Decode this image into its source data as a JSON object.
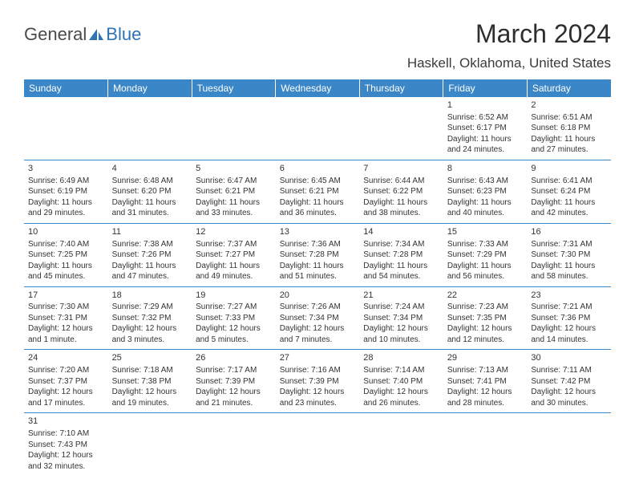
{
  "logo": {
    "text1": "General",
    "text2": "Blue"
  },
  "title": "March 2024",
  "location": "Haskell, Oklahoma, United States",
  "colors": {
    "header_bg": "#3b86c6",
    "header_fg": "#ffffff",
    "text": "#333333",
    "accent": "#2e74b5"
  },
  "weekdays": [
    "Sunday",
    "Monday",
    "Tuesday",
    "Wednesday",
    "Thursday",
    "Friday",
    "Saturday"
  ],
  "weeks": [
    [
      null,
      null,
      null,
      null,
      null,
      {
        "d": "1",
        "sr": "Sunrise: 6:52 AM",
        "ss": "Sunset: 6:17 PM",
        "dl1": "Daylight: 11 hours",
        "dl2": "and 24 minutes."
      },
      {
        "d": "2",
        "sr": "Sunrise: 6:51 AM",
        "ss": "Sunset: 6:18 PM",
        "dl1": "Daylight: 11 hours",
        "dl2": "and 27 minutes."
      }
    ],
    [
      {
        "d": "3",
        "sr": "Sunrise: 6:49 AM",
        "ss": "Sunset: 6:19 PM",
        "dl1": "Daylight: 11 hours",
        "dl2": "and 29 minutes."
      },
      {
        "d": "4",
        "sr": "Sunrise: 6:48 AM",
        "ss": "Sunset: 6:20 PM",
        "dl1": "Daylight: 11 hours",
        "dl2": "and 31 minutes."
      },
      {
        "d": "5",
        "sr": "Sunrise: 6:47 AM",
        "ss": "Sunset: 6:21 PM",
        "dl1": "Daylight: 11 hours",
        "dl2": "and 33 minutes."
      },
      {
        "d": "6",
        "sr": "Sunrise: 6:45 AM",
        "ss": "Sunset: 6:21 PM",
        "dl1": "Daylight: 11 hours",
        "dl2": "and 36 minutes."
      },
      {
        "d": "7",
        "sr": "Sunrise: 6:44 AM",
        "ss": "Sunset: 6:22 PM",
        "dl1": "Daylight: 11 hours",
        "dl2": "and 38 minutes."
      },
      {
        "d": "8",
        "sr": "Sunrise: 6:43 AM",
        "ss": "Sunset: 6:23 PM",
        "dl1": "Daylight: 11 hours",
        "dl2": "and 40 minutes."
      },
      {
        "d": "9",
        "sr": "Sunrise: 6:41 AM",
        "ss": "Sunset: 6:24 PM",
        "dl1": "Daylight: 11 hours",
        "dl2": "and 42 minutes."
      }
    ],
    [
      {
        "d": "10",
        "sr": "Sunrise: 7:40 AM",
        "ss": "Sunset: 7:25 PM",
        "dl1": "Daylight: 11 hours",
        "dl2": "and 45 minutes."
      },
      {
        "d": "11",
        "sr": "Sunrise: 7:38 AM",
        "ss": "Sunset: 7:26 PM",
        "dl1": "Daylight: 11 hours",
        "dl2": "and 47 minutes."
      },
      {
        "d": "12",
        "sr": "Sunrise: 7:37 AM",
        "ss": "Sunset: 7:27 PM",
        "dl1": "Daylight: 11 hours",
        "dl2": "and 49 minutes."
      },
      {
        "d": "13",
        "sr": "Sunrise: 7:36 AM",
        "ss": "Sunset: 7:28 PM",
        "dl1": "Daylight: 11 hours",
        "dl2": "and 51 minutes."
      },
      {
        "d": "14",
        "sr": "Sunrise: 7:34 AM",
        "ss": "Sunset: 7:28 PM",
        "dl1": "Daylight: 11 hours",
        "dl2": "and 54 minutes."
      },
      {
        "d": "15",
        "sr": "Sunrise: 7:33 AM",
        "ss": "Sunset: 7:29 PM",
        "dl1": "Daylight: 11 hours",
        "dl2": "and 56 minutes."
      },
      {
        "d": "16",
        "sr": "Sunrise: 7:31 AM",
        "ss": "Sunset: 7:30 PM",
        "dl1": "Daylight: 11 hours",
        "dl2": "and 58 minutes."
      }
    ],
    [
      {
        "d": "17",
        "sr": "Sunrise: 7:30 AM",
        "ss": "Sunset: 7:31 PM",
        "dl1": "Daylight: 12 hours",
        "dl2": "and 1 minute."
      },
      {
        "d": "18",
        "sr": "Sunrise: 7:29 AM",
        "ss": "Sunset: 7:32 PM",
        "dl1": "Daylight: 12 hours",
        "dl2": "and 3 minutes."
      },
      {
        "d": "19",
        "sr": "Sunrise: 7:27 AM",
        "ss": "Sunset: 7:33 PM",
        "dl1": "Daylight: 12 hours",
        "dl2": "and 5 minutes."
      },
      {
        "d": "20",
        "sr": "Sunrise: 7:26 AM",
        "ss": "Sunset: 7:34 PM",
        "dl1": "Daylight: 12 hours",
        "dl2": "and 7 minutes."
      },
      {
        "d": "21",
        "sr": "Sunrise: 7:24 AM",
        "ss": "Sunset: 7:34 PM",
        "dl1": "Daylight: 12 hours",
        "dl2": "and 10 minutes."
      },
      {
        "d": "22",
        "sr": "Sunrise: 7:23 AM",
        "ss": "Sunset: 7:35 PM",
        "dl1": "Daylight: 12 hours",
        "dl2": "and 12 minutes."
      },
      {
        "d": "23",
        "sr": "Sunrise: 7:21 AM",
        "ss": "Sunset: 7:36 PM",
        "dl1": "Daylight: 12 hours",
        "dl2": "and 14 minutes."
      }
    ],
    [
      {
        "d": "24",
        "sr": "Sunrise: 7:20 AM",
        "ss": "Sunset: 7:37 PM",
        "dl1": "Daylight: 12 hours",
        "dl2": "and 17 minutes."
      },
      {
        "d": "25",
        "sr": "Sunrise: 7:18 AM",
        "ss": "Sunset: 7:38 PM",
        "dl1": "Daylight: 12 hours",
        "dl2": "and 19 minutes."
      },
      {
        "d": "26",
        "sr": "Sunrise: 7:17 AM",
        "ss": "Sunset: 7:39 PM",
        "dl1": "Daylight: 12 hours",
        "dl2": "and 21 minutes."
      },
      {
        "d": "27",
        "sr": "Sunrise: 7:16 AM",
        "ss": "Sunset: 7:39 PM",
        "dl1": "Daylight: 12 hours",
        "dl2": "and 23 minutes."
      },
      {
        "d": "28",
        "sr": "Sunrise: 7:14 AM",
        "ss": "Sunset: 7:40 PM",
        "dl1": "Daylight: 12 hours",
        "dl2": "and 26 minutes."
      },
      {
        "d": "29",
        "sr": "Sunrise: 7:13 AM",
        "ss": "Sunset: 7:41 PM",
        "dl1": "Daylight: 12 hours",
        "dl2": "and 28 minutes."
      },
      {
        "d": "30",
        "sr": "Sunrise: 7:11 AM",
        "ss": "Sunset: 7:42 PM",
        "dl1": "Daylight: 12 hours",
        "dl2": "and 30 minutes."
      }
    ],
    [
      {
        "d": "31",
        "sr": "Sunrise: 7:10 AM",
        "ss": "Sunset: 7:43 PM",
        "dl1": "Daylight: 12 hours",
        "dl2": "and 32 minutes."
      },
      null,
      null,
      null,
      null,
      null,
      null
    ]
  ]
}
